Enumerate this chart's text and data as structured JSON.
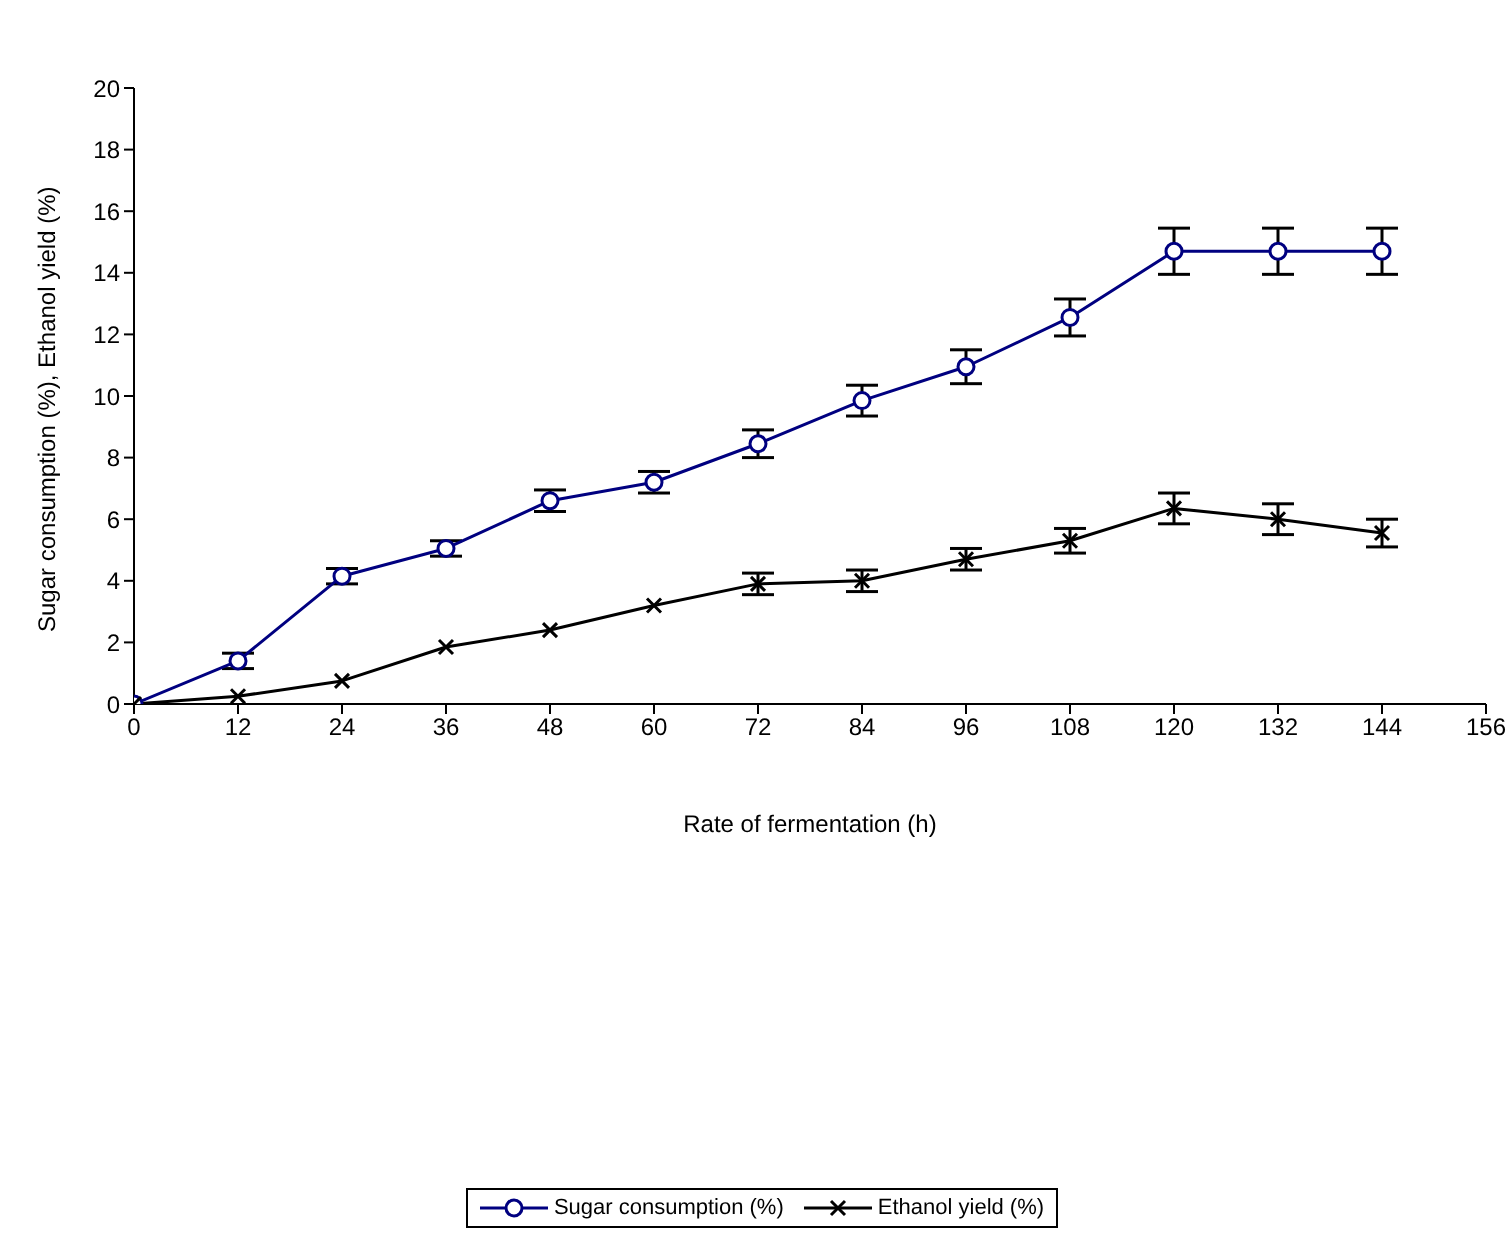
{
  "chart_data": {
    "type": "line",
    "xlabel": "Rate of fermentation (h)",
    "ylabel": "Sugar consumption (%), Ethanol yield (%)",
    "x": [
      0,
      12,
      24,
      36,
      48,
      60,
      72,
      84,
      96,
      108,
      120,
      132,
      144
    ],
    "series": [
      {
        "name": "Sugar consumption (%)",
        "color": "#000080",
        "marker": "circle",
        "values": [
          0,
          1.4,
          4.15,
          5.05,
          6.6,
          7.2,
          8.45,
          9.85,
          10.95,
          12.55,
          14.7,
          14.7,
          14.7
        ],
        "errors": [
          null,
          0.25,
          0.25,
          0.25,
          0.35,
          0.35,
          0.45,
          0.5,
          0.55,
          0.6,
          0.75,
          0.75,
          0.75
        ]
      },
      {
        "name": "Ethanol yield (%)",
        "color": "#000000",
        "marker": "cross",
        "values": [
          0,
          0.25,
          0.75,
          1.85,
          2.4,
          3.2,
          3.9,
          4.0,
          4.7,
          5.3,
          6.35,
          6.0,
          5.55
        ],
        "errors": [
          null,
          null,
          null,
          null,
          null,
          null,
          0.35,
          0.35,
          0.35,
          0.4,
          0.5,
          0.5,
          0.45
        ]
      }
    ],
    "xlim": [
      0,
      156
    ],
    "xticks": [
      0,
      12,
      24,
      36,
      48,
      60,
      72,
      84,
      96,
      108,
      120,
      132,
      144,
      156
    ],
    "ylim": [
      0,
      20
    ],
    "yticks": [
      0,
      2,
      4,
      6,
      8,
      10,
      12,
      14,
      16,
      18,
      20
    ],
    "grid": false,
    "legend": "bottom",
    "line_style": "solid"
  }
}
